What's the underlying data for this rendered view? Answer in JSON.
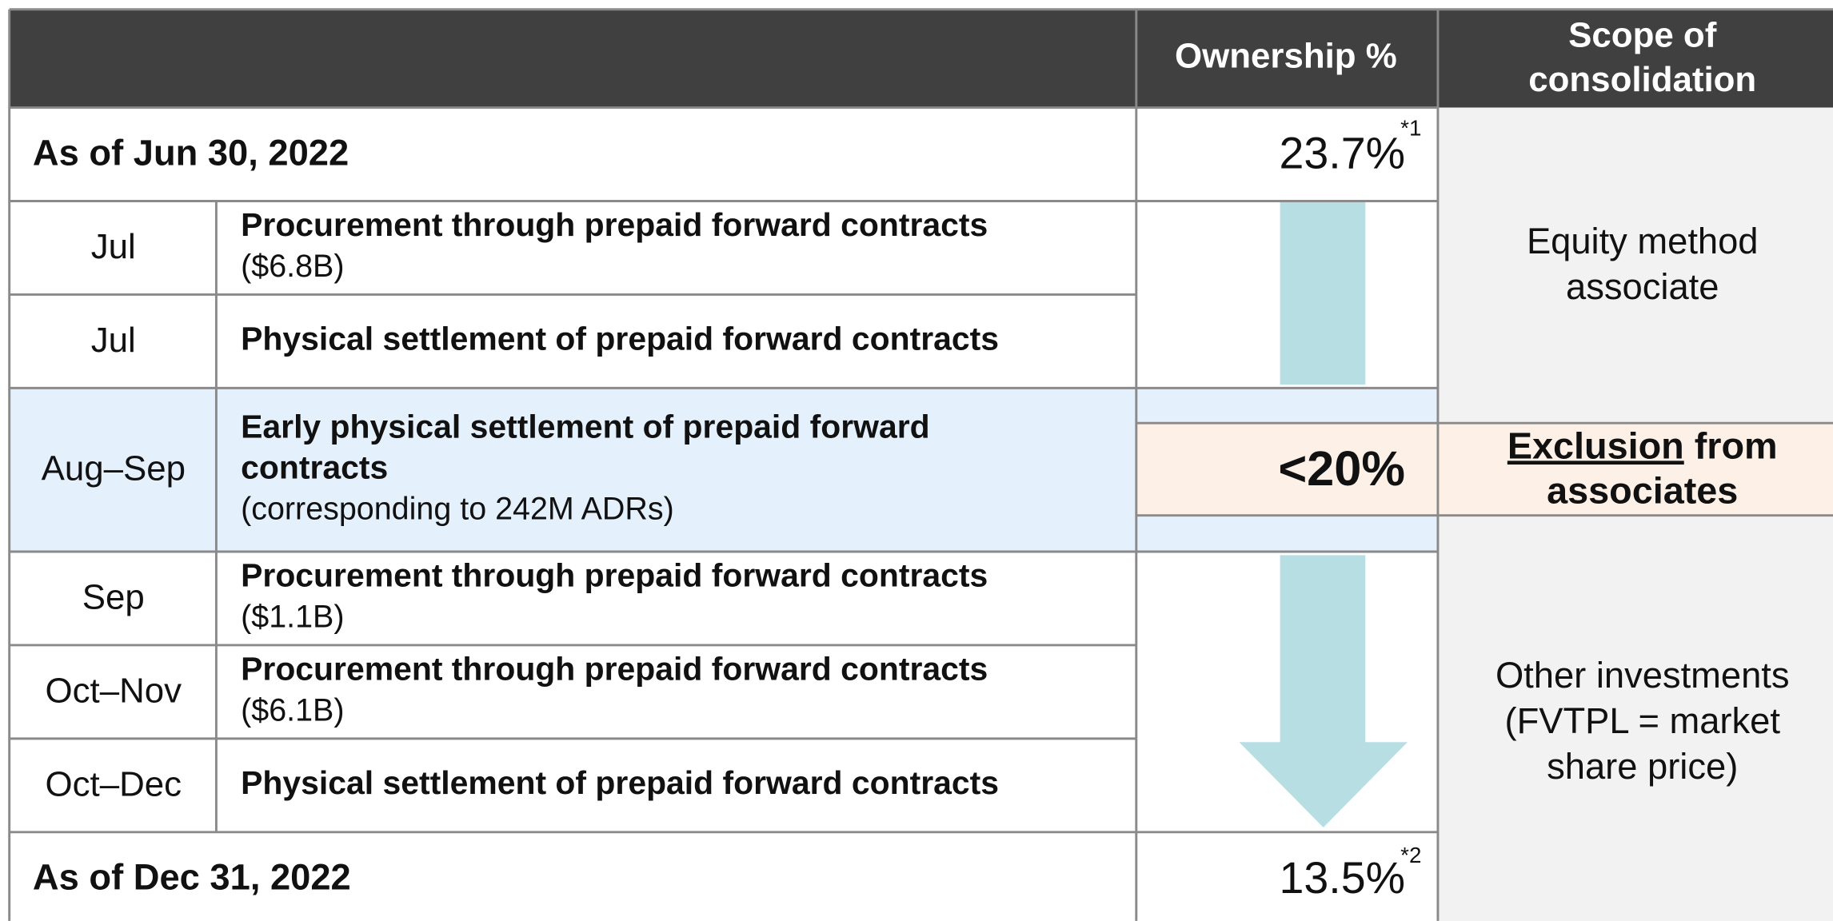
{
  "header": {
    "ownership": "Ownership %",
    "scope": [
      "Scope of",
      "consolidation"
    ]
  },
  "start": {
    "label": "As of Jun 30, 2022",
    "value": "23.7%",
    "note": "*1"
  },
  "rows": [
    {
      "date": "Jul",
      "description": [
        "Procurement through prepaid forward contracts"
      ],
      "detail": "($6.8B)"
    },
    {
      "date": "Jul",
      "description": [
        "Physical settlement of prepaid forward contracts"
      ]
    },
    {
      "date": "Aug–Sep",
      "description": [
        "Early physical settlement of prepaid forward",
        "contracts"
      ],
      "detail": "(corresponding to 242M ADRs)"
    },
    {
      "date": "Sep",
      "description": [
        "Procurement through prepaid forward contracts"
      ],
      "detail": "($1.1B)"
    },
    {
      "date": "Oct–Nov",
      "description": [
        "Procurement through prepaid forward contracts"
      ],
      "detail": "($6.1B)"
    },
    {
      "date": "Oct–Dec",
      "description": [
        "Physical settlement of prepaid forward contracts"
      ]
    }
  ],
  "end": {
    "label": "As of Dec 31, 2022",
    "value": "13.5%",
    "note": "*2"
  },
  "threshold": "<20%",
  "scope": {
    "equity": [
      "Equity method",
      "associate"
    ],
    "exclusion": {
      "underlined": "Exclusion",
      "text": [
        "from",
        "associates"
      ]
    },
    "other": [
      "Other investments",
      "(FVTPL = market",
      "share price)"
    ]
  }
}
